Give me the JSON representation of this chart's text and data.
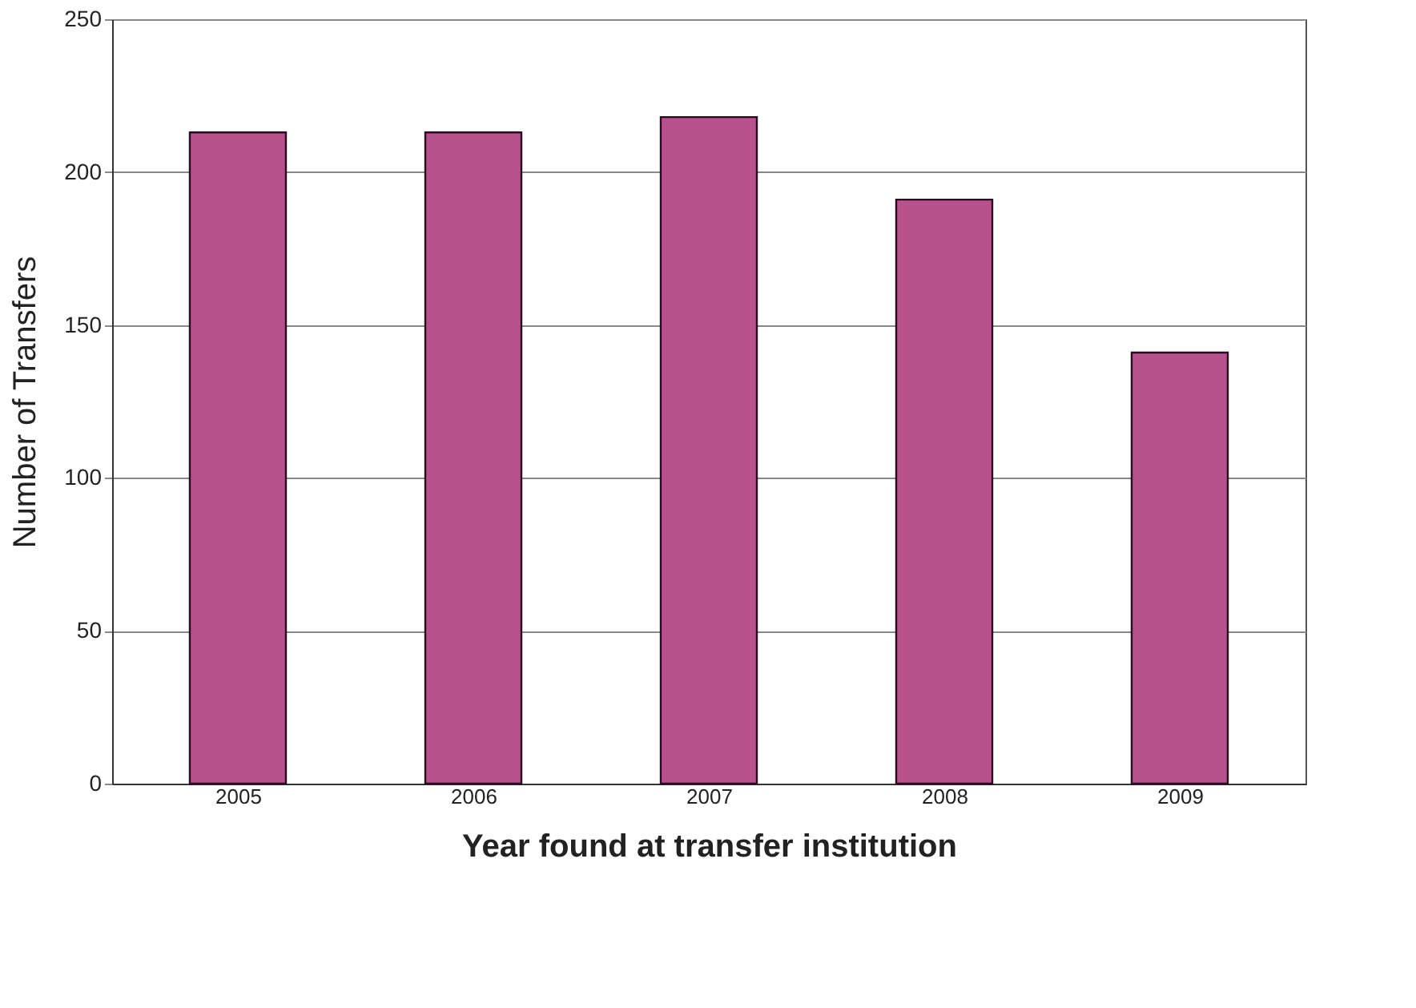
{
  "chart_data": {
    "type": "bar",
    "xlabel": "Year found at transfer institution",
    "ylabel": "Number of Transfers",
    "categories": [
      "2005",
      "2006",
      "2007",
      "2008",
      "2009"
    ],
    "values": [
      213,
      213,
      218,
      191,
      141
    ],
    "color": "#b8528f",
    "ylim": [
      0,
      250
    ],
    "yticks": [
      0,
      50,
      100,
      150,
      200,
      250
    ],
    "grid": "y"
  }
}
